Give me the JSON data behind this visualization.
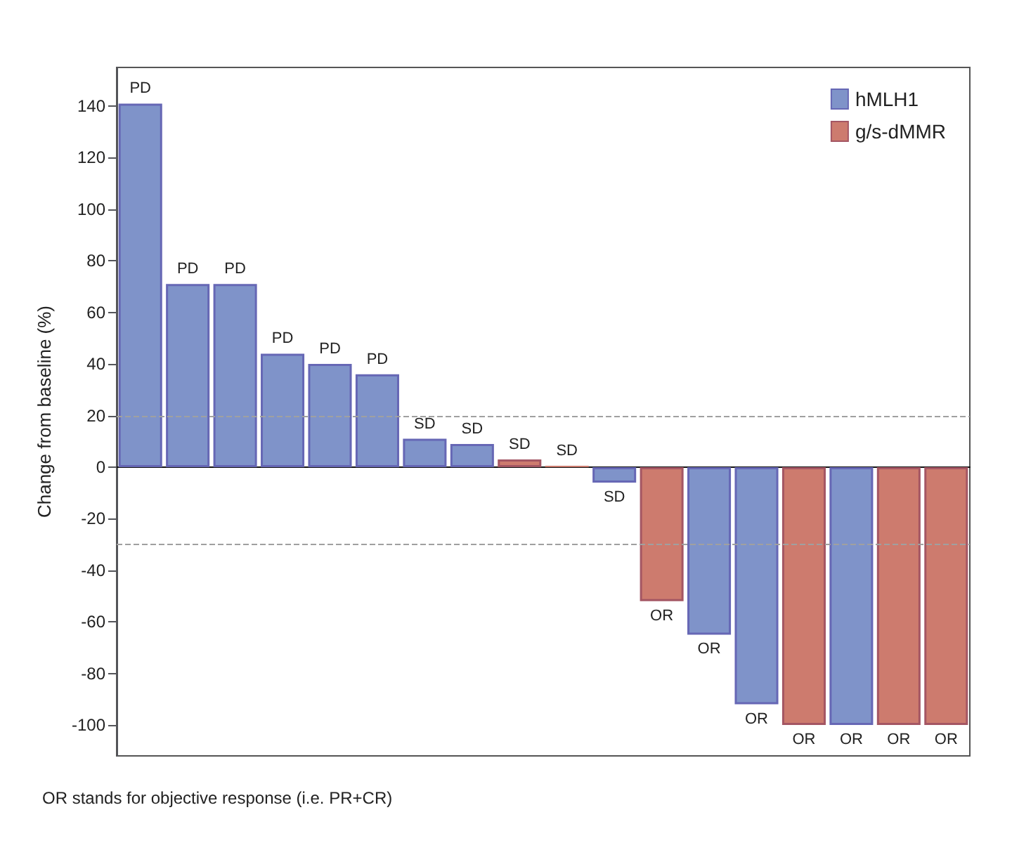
{
  "chart_data": {
    "type": "bar",
    "ylabel": "Change from baseline (%)",
    "categories": [
      null,
      null,
      null,
      null,
      null,
      null,
      null,
      null,
      null,
      null,
      null,
      null,
      null,
      null,
      null,
      null,
      null,
      null
    ],
    "series": [
      {
        "name": "hMLH1",
        "color": "#7f93c9",
        "values": [
          141,
          71,
          71,
          44,
          40,
          36,
          11,
          9,
          null,
          null,
          -6,
          null,
          -65,
          -92,
          null,
          -100,
          null,
          null
        ],
        "value_labels": [
          "PD",
          "PD",
          "PD",
          "PD",
          "PD",
          "PD",
          "SD",
          "SD",
          null,
          null,
          "SD",
          null,
          "OR",
          "OR",
          null,
          "OR",
          null,
          null
        ]
      },
      {
        "name": "g/s-dMMR",
        "color": "#cd7b6e",
        "values": [
          null,
          null,
          null,
          null,
          null,
          null,
          null,
          null,
          3,
          0.5,
          null,
          -52,
          null,
          null,
          -100,
          null,
          -100,
          -100
        ],
        "value_labels": [
          null,
          null,
          null,
          null,
          null,
          null,
          null,
          null,
          "SD",
          "SD",
          null,
          "OR",
          null,
          null,
          "OR",
          null,
          "OR",
          "OR"
        ]
      }
    ],
    "ylim": [
      -112,
      155
    ],
    "yticks": [
      -100,
      -80,
      -60,
      -40,
      -20,
      0,
      20,
      40,
      60,
      80,
      100,
      120,
      140
    ],
    "ref_lines": [
      {
        "axis": "y",
        "value": 20,
        "color": "#a0a0a0",
        "line_style": "dashed"
      },
      {
        "axis": "y",
        "value": -30,
        "color": "#a0a0a0",
        "line_style": "dashed"
      }
    ],
    "grid": false,
    "legend": "top right",
    "tick_labels": "y",
    "annotations": [
      "OR stands for objective response (i.e. PR+CR)"
    ]
  }
}
